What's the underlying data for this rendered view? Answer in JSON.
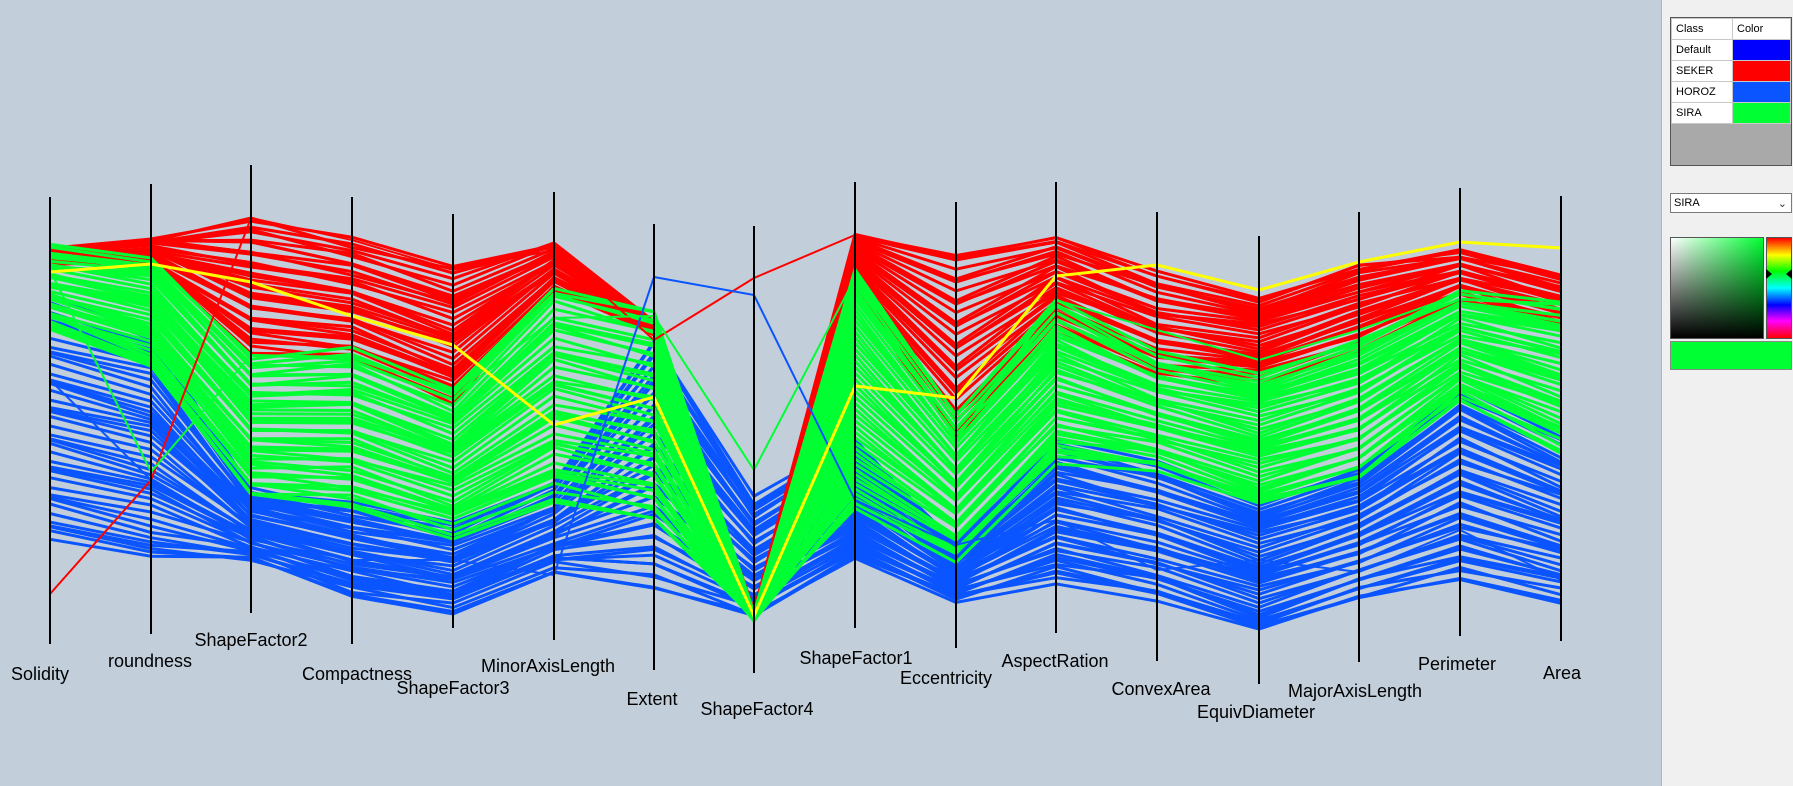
{
  "chart_data": {
    "type": "parallel-coordinates",
    "axes": [
      "Solidity",
      "roundness",
      "ShapeFactor2",
      "Compactness",
      "ShapeFactor3",
      "MinorAxisLength",
      "Extent",
      "ShapeFactor4",
      "ShapeFactor1",
      "Eccentricity",
      "AspectRation",
      "ConvexArea",
      "EquivDiameter",
      "MajorAxisLength",
      "Perimeter",
      "Area"
    ],
    "series": [
      {
        "name": "SEKER",
        "color": "#ff0000"
      },
      {
        "name": "HOROZ",
        "color": "#0a55ff"
      },
      {
        "name": "SIRA",
        "color": "#00ff33"
      }
    ],
    "highlight_color": "#ffff00"
  },
  "legend": {
    "header_class": "Class",
    "header_color": "Color",
    "rows": [
      {
        "name": "Default",
        "color": "#0000ff"
      },
      {
        "name": "SEKER",
        "color": "#ff0000"
      },
      {
        "name": "HOROZ",
        "color": "#0a55ff"
      },
      {
        "name": "SIRA",
        "color": "#00ff33"
      }
    ]
  },
  "class_select": {
    "value": "SIRA"
  },
  "color_picker": {
    "selected_color": "#00ff33"
  }
}
